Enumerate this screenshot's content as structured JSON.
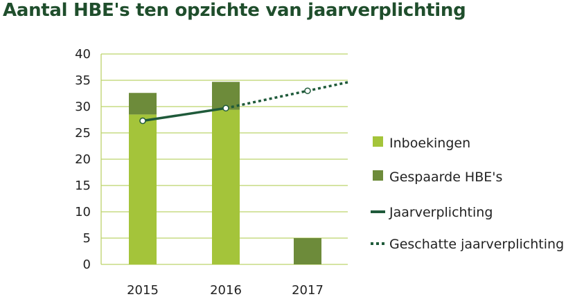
{
  "chart_data": {
    "type": "bar",
    "title": "Aantal HBE's ten opzichte van jaarverplichting",
    "categories": [
      "2015",
      "2016",
      "2017"
    ],
    "ylim": [
      0,
      40
    ],
    "yticks": [
      "0",
      "5",
      "10",
      "15",
      "20",
      "25",
      "30",
      "35",
      "40"
    ],
    "grid": true,
    "legend_position": "right",
    "stacked": true,
    "series": [
      {
        "name": "Inboekingen",
        "type": "bar",
        "color": "#a4c43a",
        "values": [
          28.5,
          29.4,
          0
        ]
      },
      {
        "name": "Gespaarde HBE's",
        "type": "bar",
        "color": "#6d8b3a",
        "values": [
          4.1,
          5.3,
          5.0
        ]
      },
      {
        "name": "Jaarverplichting",
        "type": "line",
        "style": "solid",
        "color": "#1f5a3a",
        "values": [
          27.3,
          29.7,
          null
        ]
      },
      {
        "name": "Geschatte jaarverplichting",
        "type": "line",
        "style": "dotted",
        "color": "#1f5a3a",
        "values": [
          null,
          29.7,
          33.0
        ]
      }
    ],
    "gridline_color": "#bcd36b"
  }
}
